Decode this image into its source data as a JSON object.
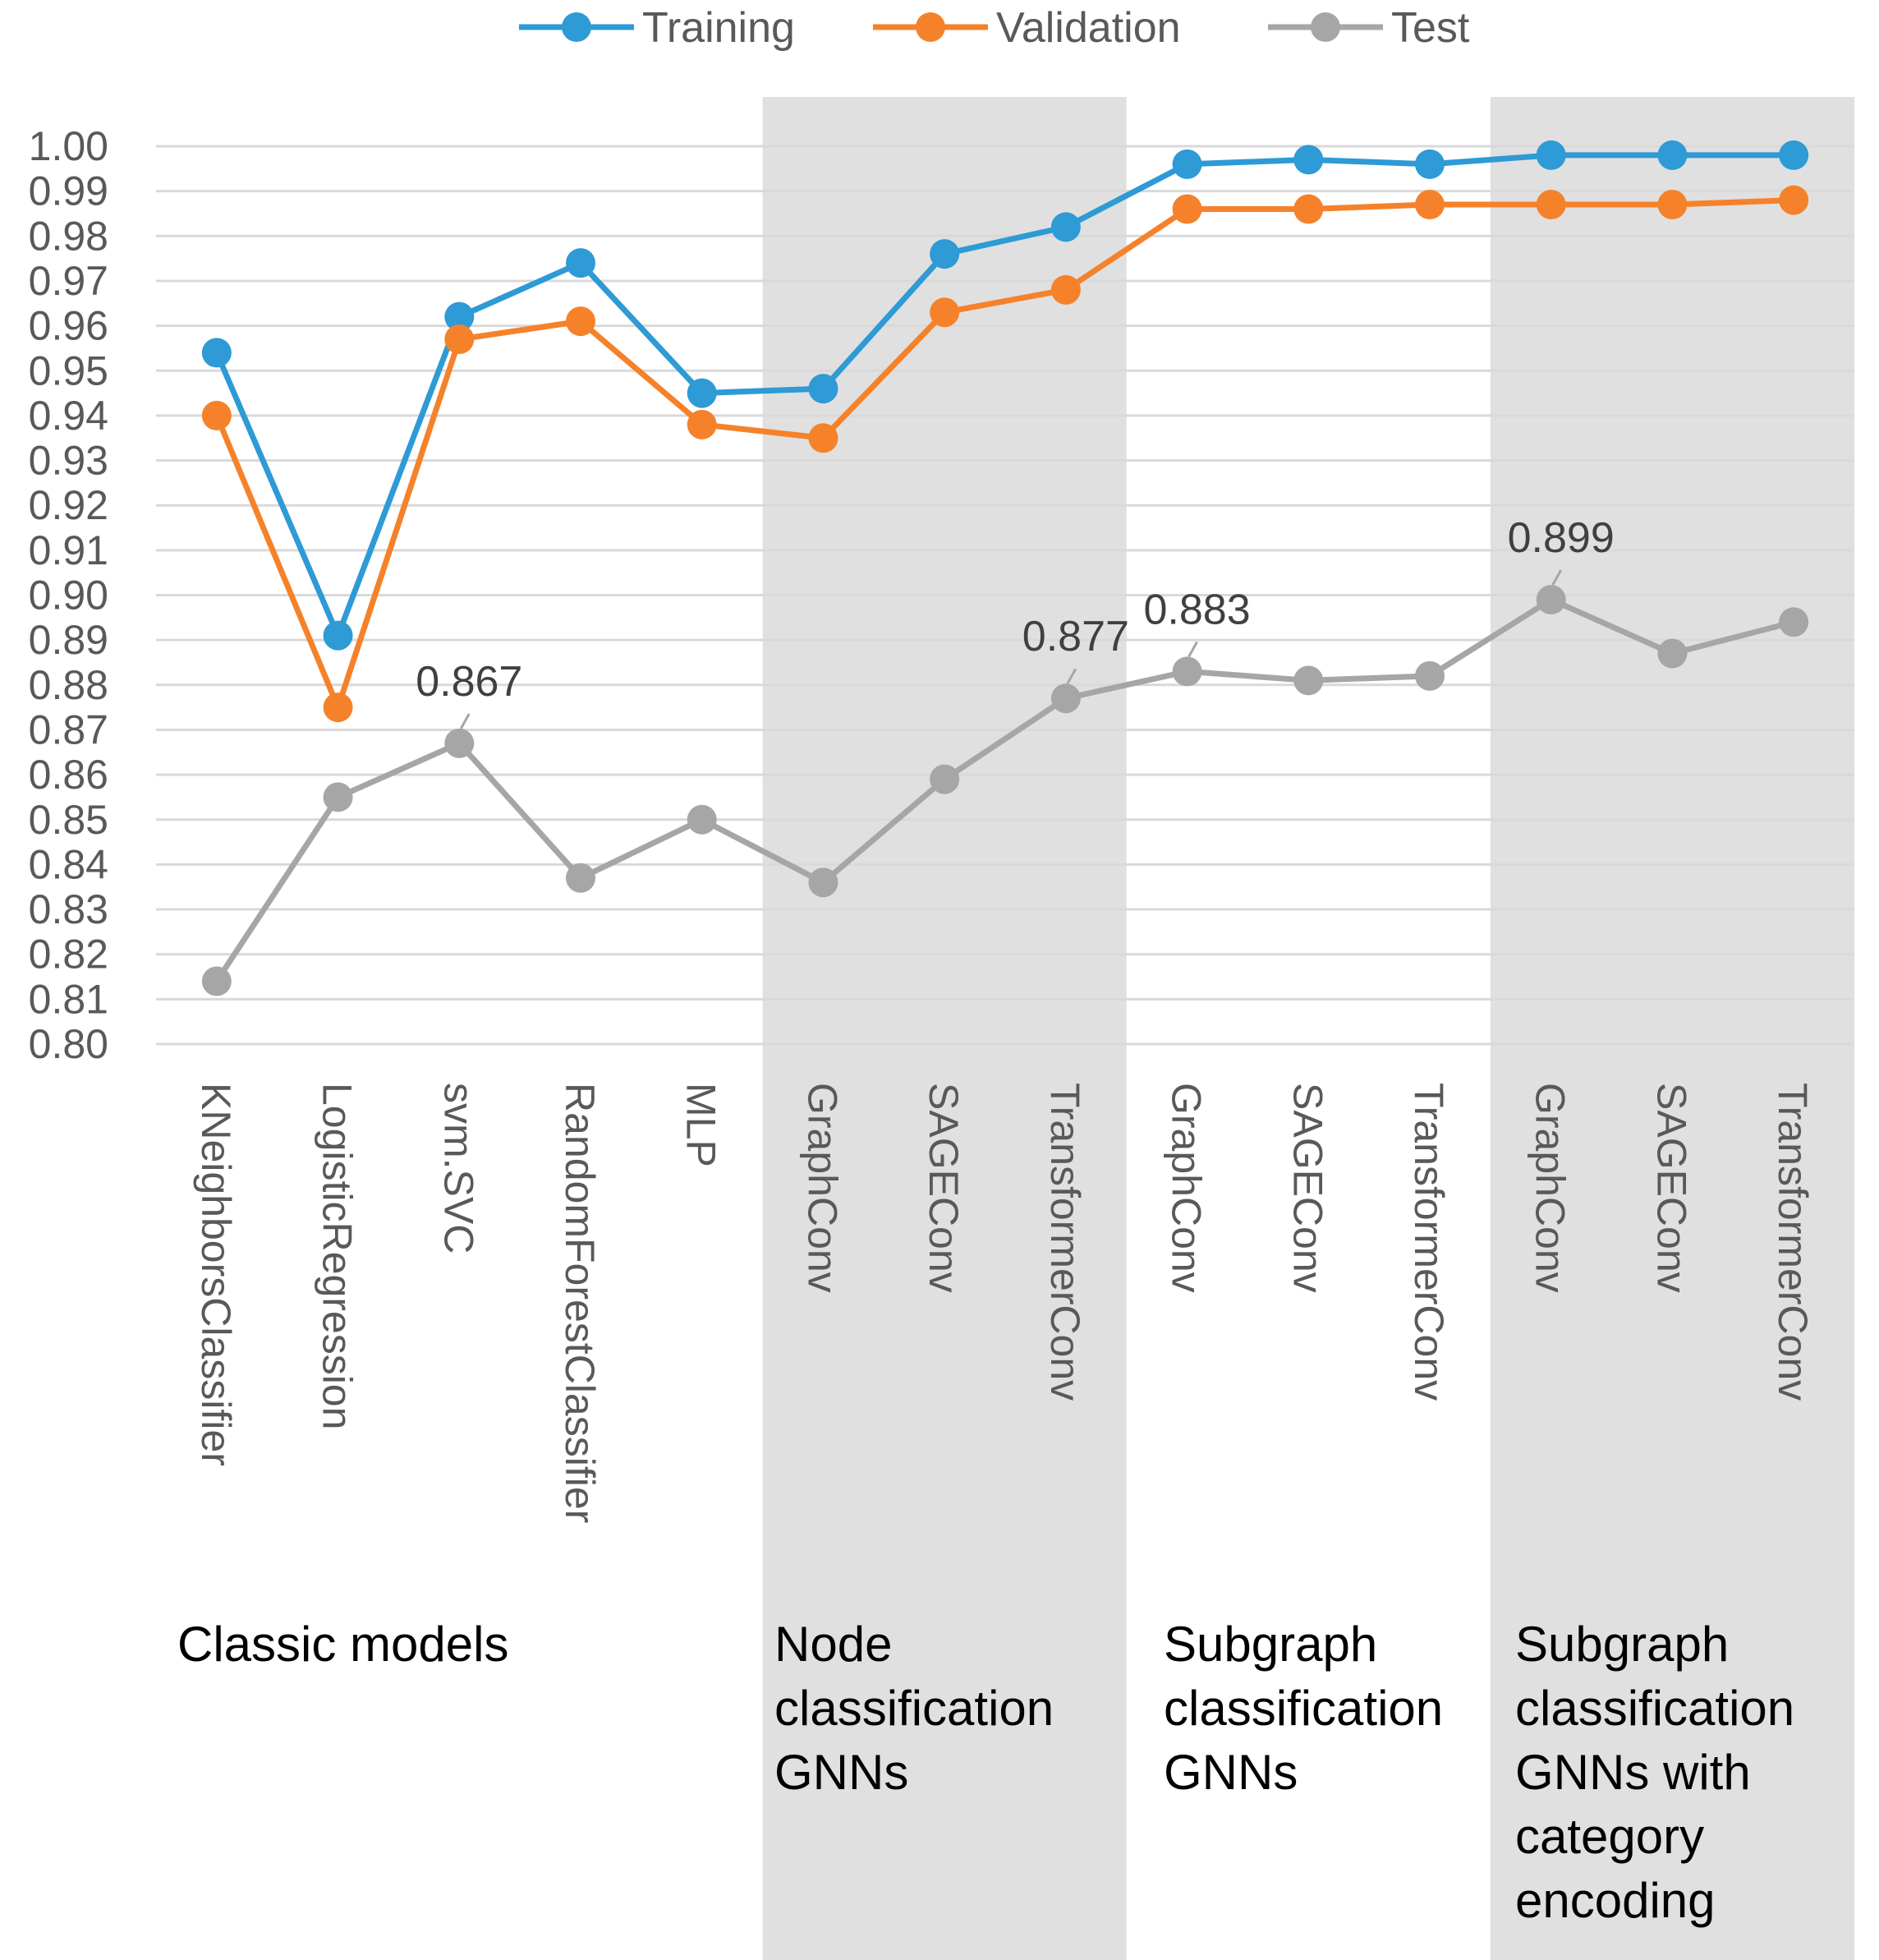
{
  "chart_data": {
    "type": "line",
    "title": "",
    "xlabel": "",
    "ylabel": "",
    "ylim": [
      0.8,
      1.0
    ],
    "y_ticks": [
      "0.80",
      "0.81",
      "0.82",
      "0.83",
      "0.84",
      "0.85",
      "0.86",
      "0.87",
      "0.88",
      "0.89",
      "0.90",
      "0.91",
      "0.92",
      "0.93",
      "0.94",
      "0.95",
      "0.96",
      "0.97",
      "0.98",
      "0.99",
      "1.00"
    ],
    "grid": true,
    "legend_position": "top",
    "categories": [
      "KNeighborsClassifier",
      "LogisticRegression",
      "svm.SVC",
      "RandomForestClassifier",
      "MLP",
      "GraphConv",
      "SAGEConv",
      "TransformerConv",
      "GraphConv",
      "SAGEConv",
      "TransformerConv",
      "GraphConv",
      "SAGEConv",
      "TransformerConv"
    ],
    "series": [
      {
        "name": "Training",
        "color": "#2E9AD6",
        "values": [
          0.954,
          0.891,
          0.962,
          0.974,
          0.945,
          0.946,
          0.976,
          0.982,
          0.996,
          0.997,
          0.996,
          0.998,
          0.998,
          0.998
        ]
      },
      {
        "name": "Validation",
        "color": "#F5822A",
        "values": [
          0.94,
          0.875,
          0.957,
          0.961,
          0.938,
          0.935,
          0.963,
          0.968,
          0.986,
          0.986,
          0.987,
          0.987,
          0.987,
          0.988
        ]
      },
      {
        "name": "Test",
        "color": "#A6A6A6",
        "values": [
          0.814,
          0.855,
          0.867,
          0.837,
          0.85,
          0.836,
          0.859,
          0.877,
          0.883,
          0.881,
          0.882,
          0.899,
          0.887,
          0.894
        ]
      }
    ],
    "annotations": [
      {
        "series": "Test",
        "index": 2,
        "text": "0.867"
      },
      {
        "series": "Test",
        "index": 7,
        "text": "0.877"
      },
      {
        "series": "Test",
        "index": 8,
        "text": "0.883"
      },
      {
        "series": "Test",
        "index": 11,
        "text": "0.899"
      }
    ],
    "groups": [
      {
        "lines": [
          "Classic models"
        ],
        "start": 0,
        "end": 4,
        "shaded": false
      },
      {
        "lines": [
          "Node",
          "classification",
          "GNNs"
        ],
        "start": 5,
        "end": 7,
        "shaded": true
      },
      {
        "lines": [
          "Subgraph",
          "classification",
          "GNNs"
        ],
        "start": 8,
        "end": 10,
        "shaded": false
      },
      {
        "lines": [
          "Subgraph",
          "classification",
          "GNNs with",
          "category",
          "encoding"
        ],
        "start": 11,
        "end": 13,
        "shaded": true
      }
    ],
    "shade_color": "#E0E0E0",
    "grid_color": "#D9D9D9"
  }
}
